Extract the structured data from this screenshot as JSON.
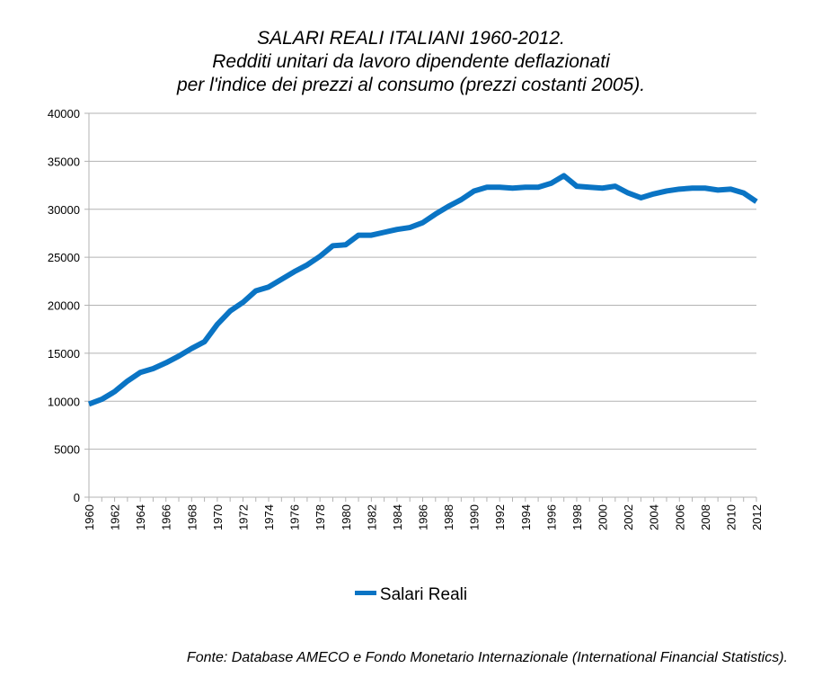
{
  "chart_data": {
    "type": "line",
    "title_lines": [
      "SALARI REALI ITALIANI 1960-2012.",
      "Redditi unitari da lavoro dipendente deflazionati",
      "per l'indice dei prezzi al consumo (prezzi costanti 2005)."
    ],
    "xlabel": "",
    "ylabel": "",
    "ylim": [
      0,
      40000
    ],
    "xlim": [
      1960,
      2012
    ],
    "y_ticks": [
      "0",
      "5000",
      "10000",
      "15000",
      "20000",
      "25000",
      "30000",
      "35000",
      "40000"
    ],
    "x_ticks": [
      "1960",
      "1962",
      "1964",
      "1966",
      "1968",
      "1970",
      "1972",
      "1974",
      "1976",
      "1978",
      "1980",
      "1982",
      "1984",
      "1986",
      "1988",
      "1990",
      "1992",
      "1994",
      "1996",
      "1998",
      "2000",
      "2002",
      "2004",
      "2006",
      "2008",
      "2010",
      "2012"
    ],
    "grid": "horizontal",
    "legend_position": "bottom",
    "series": [
      {
        "name": "Salari Reali",
        "color": "#0a74c4",
        "x": [
          1960,
          1961,
          1962,
          1963,
          1964,
          1965,
          1966,
          1967,
          1968,
          1969,
          1970,
          1971,
          1972,
          1973,
          1974,
          1975,
          1976,
          1977,
          1978,
          1979,
          1980,
          1981,
          1982,
          1983,
          1984,
          1985,
          1986,
          1987,
          1988,
          1989,
          1990,
          1991,
          1992,
          1993,
          1994,
          1995,
          1996,
          1997,
          1998,
          1999,
          2000,
          2001,
          2002,
          2003,
          2004,
          2005,
          2006,
          2007,
          2008,
          2009,
          2010,
          2011,
          2012
        ],
        "values": [
          9700,
          10200,
          11000,
          12100,
          13000,
          13400,
          14000,
          14700,
          15500,
          16200,
          18000,
          19400,
          20300,
          21500,
          21900,
          22700,
          23500,
          24200,
          25100,
          26200,
          26300,
          27300,
          27300,
          27600,
          27900,
          28100,
          28600,
          29500,
          30300,
          31000,
          31900,
          32300,
          32300,
          32200,
          32300,
          32300,
          32700,
          33500,
          32400,
          32300,
          32200,
          32400,
          31700,
          31200,
          31600,
          31900,
          32100,
          32200,
          32200,
          32000,
          32100,
          31700,
          30800
        ]
      }
    ]
  },
  "legend": {
    "label": "Salari Reali"
  },
  "source_note": "Fonte: Database AMECO e Fondo Monetario Internazionale (International Financial Statistics)."
}
